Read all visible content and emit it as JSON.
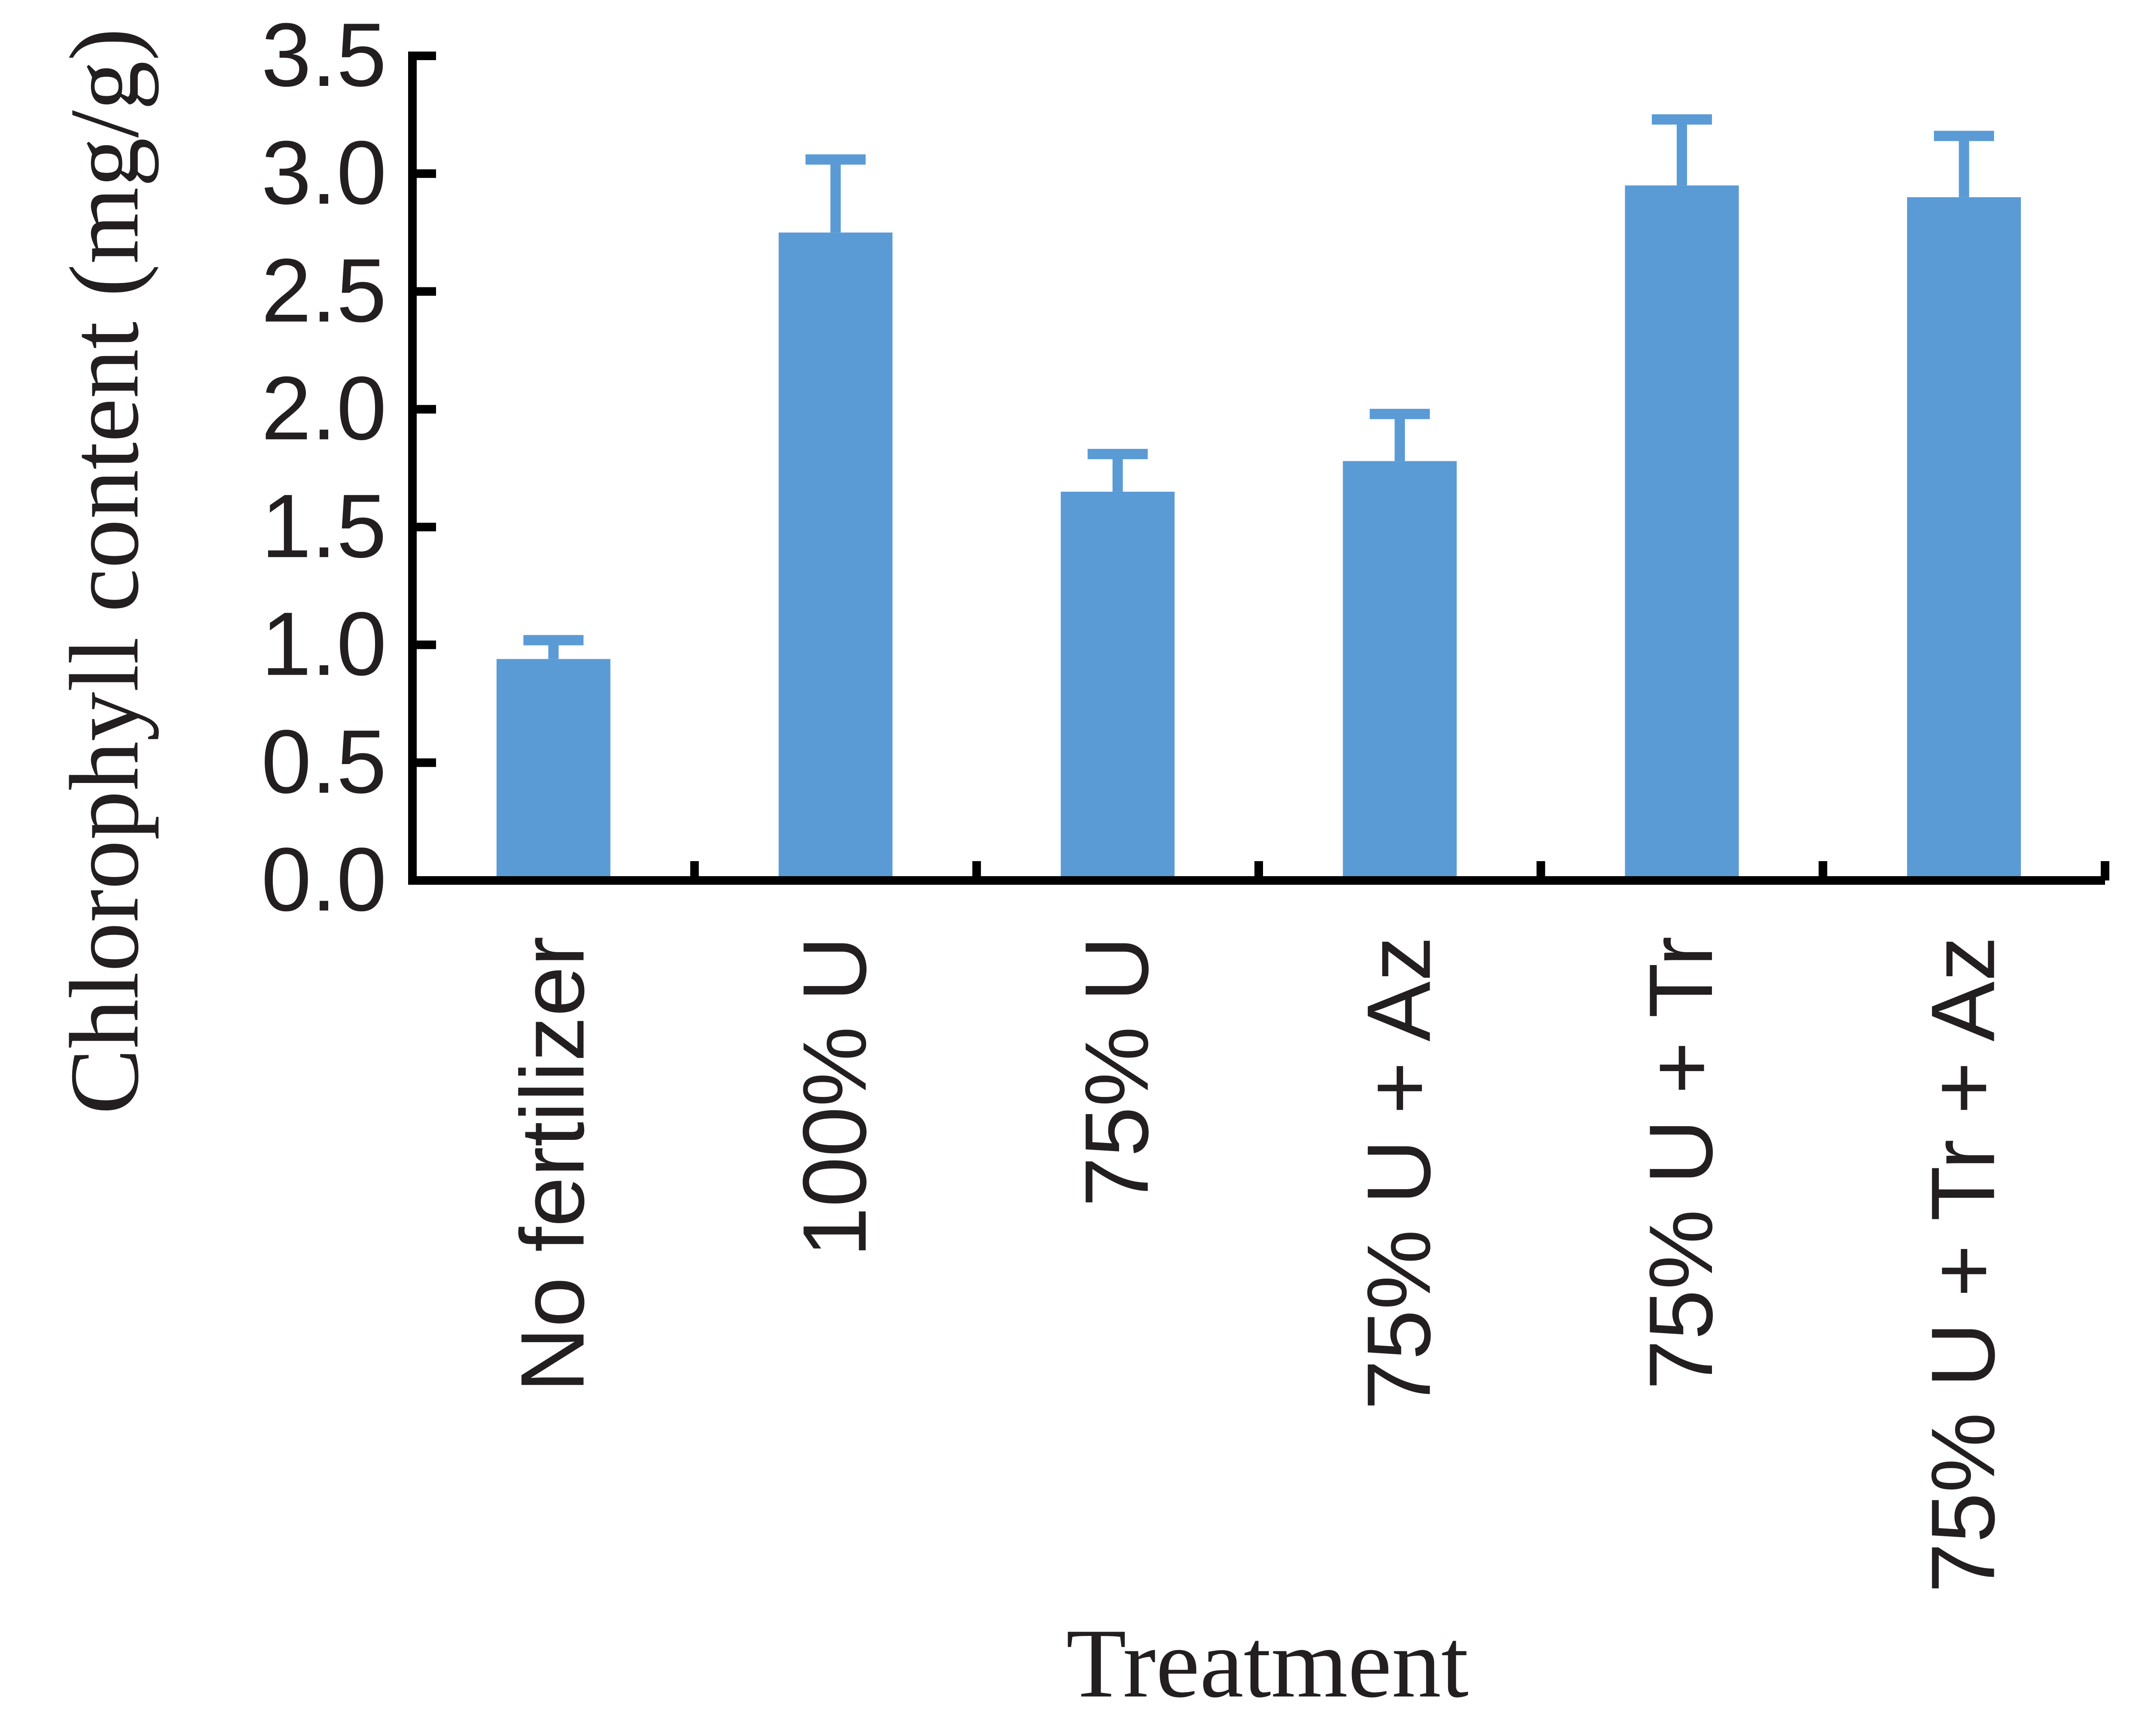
{
  "chart_data": {
    "type": "bar",
    "xlabel": "Treatment",
    "ylabel": "Chlorophyll content (mg/g)",
    "ylim": [
      0,
      3.5
    ],
    "yticks": [
      "0.0",
      "0.5",
      "1.0",
      "1.5",
      "2.0",
      "2.5",
      "3.0",
      "3.5"
    ],
    "categories": [
      "No fertilizer",
      "100% U",
      "75% U",
      "75% U + Az",
      "75% U + Tr",
      "75% U + Tr + Az"
    ],
    "values": [
      0.94,
      2.75,
      1.65,
      1.78,
      2.95,
      2.9
    ],
    "errors": [
      0.08,
      0.31,
      0.16,
      0.2,
      0.28,
      0.26
    ],
    "bar_color": "#5b9bd5",
    "axis_color": "#000000",
    "text_color": "#231f20",
    "grid": false,
    "legend": "none"
  }
}
